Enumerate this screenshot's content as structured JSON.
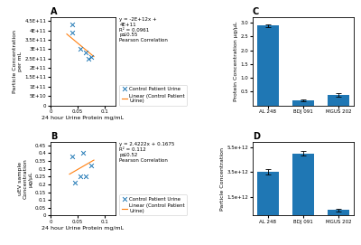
{
  "chart_data": [
    {
      "type": "scatter",
      "title": "A",
      "xlabel": "24 hour Urine Protein mg/mL",
      "ylabel": "Particle Concentration\nper mL",
      "series": [
        {
          "name": "Control Patient Urine",
          "type": "scatter",
          "marker": "x",
          "x": [
            0.04,
            0.04,
            0.055,
            0.065,
            0.07,
            0.075
          ],
          "values": [
            390000000000.0,
            430000000000.0,
            300000000000.0,
            280000000000.0,
            250000000000.0,
            260000000000.0
          ]
        },
        {
          "name": "Linear (Control Patient\nUrine)",
          "type": "line",
          "x": [
            0.03,
            0.08
          ],
          "values": [
            380000000000.0,
            260000000000.0
          ]
        }
      ],
      "xlim": [
        0,
        0.12
      ],
      "xticks": [
        0,
        0.05,
        0.1
      ],
      "ylim": [
        0,
        470000000000.0
      ],
      "yticks": [
        0,
        {
          "value": 50000000000.0,
          "label": "5E+10"
        },
        {
          "value": 100000000000.0,
          "label": "1E+11"
        },
        {
          "value": 150000000000.0,
          "label": "1.5E+11"
        },
        {
          "value": 200000000000.0,
          "label": "2E+11"
        },
        {
          "value": 250000000000.0,
          "label": "2.5E+11"
        },
        {
          "value": 300000000000.0,
          "label": "3E+11"
        },
        {
          "value": 350000000000.0,
          "label": "3.5E+11"
        },
        {
          "value": 400000000000.0,
          "label": "4E+11"
        },
        {
          "value": 450000000000.0,
          "label": "4.5E+11"
        }
      ],
      "annotations": [
        "y = -2E+12x +\n4E+11",
        "R² = 0.0961",
        "p≤0.55\nPearson Correlation"
      ]
    },
    {
      "type": "scatter",
      "title": "B",
      "xlabel": "24 hour Urine Protein mg/mL",
      "ylabel": "uEV sample\nConcentration\nμg/μL",
      "series": [
        {
          "name": "Control Patient Urine",
          "type": "scatter",
          "marker": "x",
          "x": [
            0.04,
            0.045,
            0.055,
            0.06,
            0.065,
            0.075
          ],
          "values": [
            0.38,
            0.21,
            0.25,
            0.4,
            0.25,
            0.32
          ]
        },
        {
          "name": "Linear (Control Patient\nUrine)",
          "type": "line",
          "x": [
            0.035,
            0.08
          ],
          "values": [
            0.265,
            0.355
          ]
        }
      ],
      "xlim": [
        0,
        0.12
      ],
      "xticks": [
        0,
        0.05,
        0.1
      ],
      "ylim": [
        0,
        0.47
      ],
      "yticks": [
        0,
        0.05,
        0.1,
        0.15,
        0.2,
        0.25,
        0.3,
        0.35,
        0.4,
        0.45
      ],
      "annotations": [
        "y = 2.4222x + 0.1675\nR² = 0.112",
        "p≤0.52\nPearson Correlation"
      ]
    },
    {
      "type": "bar",
      "title": "C",
      "ylabel": "Protein Concentration μg/μL",
      "categories": [
        "AL 248",
        "BDJ 091",
        "MGUS 202"
      ],
      "values": [
        2.9,
        0.18,
        0.38
      ],
      "errors": [
        0.05,
        0.04,
        0.06
      ],
      "ylim": [
        0,
        3.2
      ],
      "yticks": [
        0.5,
        {
          "value": 1.0,
          "label": "1.0"
        },
        1.5,
        {
          "value": 2.0,
          "label": "2.0"
        },
        2.5,
        {
          "value": 3.0,
          "label": "3.0"
        }
      ]
    },
    {
      "type": "bar",
      "title": "D",
      "ylabel": "Particle Concentration",
      "categories": [
        "AL 248",
        "BDJ 091",
        "MGUS 202"
      ],
      "values": [
        3500000000000.0,
        5000000000000.0,
        450000000000.0
      ],
      "errors": [
        200000000000.0,
        200000000000.0,
        100000000000.0
      ],
      "ylim": [
        0,
        5900000000000.0
      ],
      "yticks": [
        {
          "value": 1500000000000.0,
          "label": "1.5e+12"
        },
        {
          "value": 3500000000000.0,
          "label": "3.5e+12"
        },
        {
          "value": 5500000000000.0,
          "label": "5.5e+12"
        }
      ]
    }
  ]
}
